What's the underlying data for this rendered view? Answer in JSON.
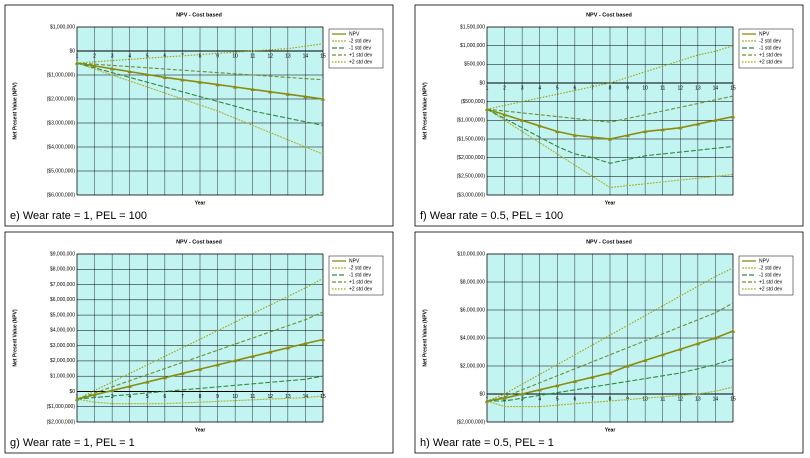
{
  "chart_data": [
    {
      "type": "line",
      "title": "NPV - Cost based",
      "ylabel": "Net Present Value (NPV)",
      "xlabel": "Year",
      "caption": "e) Wear rate = 1, PEL = 100",
      "x": [
        1,
        2,
        3,
        4,
        5,
        6,
        7,
        8,
        9,
        10,
        11,
        12,
        13,
        14,
        15
      ],
      "xlim": [
        1,
        15
      ],
      "xticks": [
        1,
        2,
        3,
        4,
        5,
        6,
        7,
        8,
        9,
        10,
        11,
        12,
        13,
        14,
        15
      ],
      "ylim": [
        -6000000,
        1000000
      ],
      "yticks": [
        {
          "value": 1000000,
          "label": "$1,000,000"
        },
        {
          "value": 0,
          "label": "$0"
        },
        {
          "value": -1000000,
          "label": "($1,000,000)"
        },
        {
          "value": -2000000,
          "label": "($2,000,000)"
        },
        {
          "value": -3000000,
          "label": "($3,000,000)"
        },
        {
          "value": -4000000,
          "label": "($4,000,000)"
        },
        {
          "value": -5000000,
          "label": "($5,000,000)"
        },
        {
          "value": -6000000,
          "label": "($6,000,000)"
        }
      ],
      "grid": true,
      "legend": "right",
      "series": [
        {
          "name": "NPV",
          "color": "#8b8b10",
          "marker": "triangle",
          "dash": "none",
          "values": [
            -500000,
            -620000,
            -740000,
            -860000,
            -980000,
            -1100000,
            -1200000,
            -1300000,
            -1400000,
            -1500000,
            -1600000,
            -1700000,
            -1800000,
            -1900000,
            -2000000
          ]
        },
        {
          "name": "-2 std dev",
          "color": "#b0b030",
          "marker": "none",
          "dash": "2,1",
          "values": [
            -500000,
            -750000,
            -1000000,
            -1250000,
            -1500000,
            -1750000,
            -2000000,
            -2250000,
            -2500000,
            -2800000,
            -3100000,
            -3400000,
            -3700000,
            -4000000,
            -4300000
          ]
        },
        {
          "name": "-1 std dev",
          "color": "#2f8a3a",
          "marker": "none",
          "dash": "5,2",
          "values": [
            -500000,
            -700000,
            -900000,
            -1100000,
            -1300000,
            -1500000,
            -1700000,
            -1900000,
            -2100000,
            -2300000,
            -2500000,
            -2650000,
            -2800000,
            -2950000,
            -3100000
          ]
        },
        {
          "name": "+1 std dev",
          "color": "#6f8f2f",
          "marker": "none",
          "dash": "4,2",
          "values": [
            -500000,
            -550000,
            -600000,
            -650000,
            -700000,
            -750000,
            -800000,
            -850000,
            -900000,
            -950000,
            -1000000,
            -1050000,
            -1100000,
            -1150000,
            -1200000
          ]
        },
        {
          "name": "+2 std dev",
          "color": "#a0a000",
          "marker": "none",
          "dash": "1.5,1.5",
          "values": [
            -500000,
            -450000,
            -400000,
            -350000,
            -300000,
            -250000,
            -200000,
            -150000,
            -100000,
            -50000,
            0,
            50000,
            100000,
            200000,
            300000
          ]
        }
      ]
    },
    {
      "type": "line",
      "title": "NPV - Cost based",
      "ylabel": "Net Present Value (NPV)",
      "xlabel": "Year",
      "caption": "f) Wear rate = 0.5, PEL = 100",
      "x": [
        1,
        2,
        3,
        4,
        5,
        6,
        7,
        8,
        9,
        10,
        11,
        12,
        13,
        14,
        15
      ],
      "xlim": [
        1,
        15
      ],
      "xticks": [
        1,
        2,
        3,
        4,
        5,
        6,
        7,
        8,
        9,
        10,
        11,
        12,
        13,
        14,
        15
      ],
      "ylim": [
        -3000000,
        1500000
      ],
      "yticks": [
        {
          "value": 1500000,
          "label": "$1,500,000"
        },
        {
          "value": 1000000,
          "label": "$1,000,000"
        },
        {
          "value": 500000,
          "label": "$500,000"
        },
        {
          "value": 0,
          "label": "$0"
        },
        {
          "value": -500000,
          "label": "($500,000)"
        },
        {
          "value": -1000000,
          "label": "($1,000,000)"
        },
        {
          "value": -1500000,
          "label": "($1,500,000)"
        },
        {
          "value": -2000000,
          "label": "($2,000,000)"
        },
        {
          "value": -2500000,
          "label": "($2,500,000)"
        },
        {
          "value": -3000000,
          "label": "($3,000,000)"
        }
      ],
      "grid": true,
      "legend": "right",
      "series": [
        {
          "name": "NPV",
          "color": "#8b8b10",
          "marker": "triangle",
          "dash": "none",
          "values": [
            -700000,
            -850000,
            -1000000,
            -1150000,
            -1300000,
            -1400000,
            -1450000,
            -1500000,
            -1400000,
            -1300000,
            -1250000,
            -1200000,
            -1100000,
            -1000000,
            -900000
          ]
        },
        {
          "name": "-2 std dev",
          "color": "#b0b030",
          "marker": "none",
          "dash": "2,1",
          "values": [
            -700000,
            -1000000,
            -1300000,
            -1600000,
            -1900000,
            -2200000,
            -2500000,
            -2800000,
            -2750000,
            -2700000,
            -2650000,
            -2600000,
            -2550000,
            -2500000,
            -2450000
          ]
        },
        {
          "name": "-1 std dev",
          "color": "#2f8a3a",
          "marker": "none",
          "dash": "5,2",
          "values": [
            -700000,
            -950000,
            -1200000,
            -1450000,
            -1700000,
            -1900000,
            -2000000,
            -2150000,
            -2050000,
            -1950000,
            -1900000,
            -1850000,
            -1800000,
            -1750000,
            -1700000
          ]
        },
        {
          "name": "+1 std dev",
          "color": "#6f8f2f",
          "marker": "none",
          "dash": "4,2",
          "values": [
            -700000,
            -750000,
            -800000,
            -850000,
            -900000,
            -950000,
            -1000000,
            -1050000,
            -950000,
            -850000,
            -750000,
            -650000,
            -550000,
            -450000,
            -350000
          ]
        },
        {
          "name": "+2 std dev",
          "color": "#a0a000",
          "marker": "none",
          "dash": "1.5,1.5",
          "values": [
            -700000,
            -600000,
            -500000,
            -400000,
            -300000,
            -200000,
            -100000,
            0,
            150000,
            300000,
            450000,
            600000,
            750000,
            850000,
            1000000
          ]
        }
      ]
    },
    {
      "type": "line",
      "title": "NPV - Cost based",
      "ylabel": "Net Present Value (NPV)",
      "xlabel": "Year",
      "caption": "g) Wear rate = 1, PEL = 1",
      "x": [
        1,
        2,
        3,
        4,
        5,
        6,
        7,
        8,
        9,
        10,
        11,
        12,
        13,
        14,
        15
      ],
      "xlim": [
        1,
        15
      ],
      "xticks": [
        1,
        2,
        3,
        4,
        5,
        6,
        7,
        8,
        9,
        10,
        11,
        12,
        13,
        14,
        15
      ],
      "ylim": [
        -2000000,
        9000000
      ],
      "yticks": [
        {
          "value": 9000000,
          "label": "$9,000,000"
        },
        {
          "value": 8000000,
          "label": "$8,000,000"
        },
        {
          "value": 7000000,
          "label": "$7,000,000"
        },
        {
          "value": 6000000,
          "label": "$6,000,000"
        },
        {
          "value": 5000000,
          "label": "$5,000,000"
        },
        {
          "value": 4000000,
          "label": "$4,000,000"
        },
        {
          "value": 3000000,
          "label": "$3,000,000"
        },
        {
          "value": 2000000,
          "label": "$2,000,000"
        },
        {
          "value": 1000000,
          "label": "$1,000,000"
        },
        {
          "value": 0,
          "label": "$0"
        },
        {
          "value": -1000000,
          "label": "($1,000,000)"
        },
        {
          "value": -2000000,
          "label": "($2,000,000)"
        }
      ],
      "grid": true,
      "legend": "right",
      "series": [
        {
          "name": "NPV",
          "color": "#8b8b10",
          "marker": "triangle",
          "dash": "none",
          "values": [
            -500000,
            -220000,
            60000,
            340000,
            620000,
            900000,
            1180000,
            1460000,
            1740000,
            2020000,
            2300000,
            2580000,
            2860000,
            3140000,
            3400000
          ]
        },
        {
          "name": "-2 std dev",
          "color": "#b0b030",
          "marker": "none",
          "dash": "2,1",
          "values": [
            -500000,
            -700000,
            -800000,
            -800000,
            -800000,
            -800000,
            -750000,
            -700000,
            -650000,
            -600000,
            -550000,
            -500000,
            -450000,
            -400000,
            -300000
          ]
        },
        {
          "name": "-1 std dev",
          "color": "#2f8a3a",
          "marker": "none",
          "dash": "5,2",
          "values": [
            -500000,
            -400000,
            -300000,
            -200000,
            -100000,
            0,
            100000,
            200000,
            300000,
            400000,
            500000,
            600000,
            700000,
            800000,
            1000000
          ]
        },
        {
          "name": "+1 std dev",
          "color": "#6f8f2f",
          "marker": "none",
          "dash": "4,2",
          "values": [
            -500000,
            -100000,
            300000,
            700000,
            1100000,
            1500000,
            1900000,
            2300000,
            2700000,
            3100000,
            3500000,
            3900000,
            4300000,
            4700000,
            5200000
          ]
        },
        {
          "name": "+2 std dev",
          "color": "#a0a000",
          "marker": "none",
          "dash": "1.5,1.5",
          "values": [
            -500000,
            60000,
            620000,
            1180000,
            1740000,
            2300000,
            2860000,
            3420000,
            3980000,
            4540000,
            5100000,
            5660000,
            6220000,
            6780000,
            7400000
          ]
        }
      ]
    },
    {
      "type": "line",
      "title": "NPV - Cost based",
      "ylabel": "Net Present Value (NPV)",
      "xlabel": "Year",
      "caption": "h) Wear rate = 0.5, PEL = 1",
      "x": [
        1,
        2,
        3,
        4,
        5,
        6,
        7,
        8,
        9,
        10,
        11,
        12,
        13,
        14,
        15
      ],
      "xlim": [
        1,
        15
      ],
      "xticks": [
        1,
        2,
        3,
        4,
        5,
        6,
        7,
        8,
        9,
        10,
        11,
        12,
        13,
        14,
        15
      ],
      "ylim": [
        -2000000,
        10000000
      ],
      "yticks": [
        {
          "value": 10000000,
          "label": "$10,000,000"
        },
        {
          "value": 8000000,
          "label": "$8,000,000"
        },
        {
          "value": 6000000,
          "label": "$6,000,000"
        },
        {
          "value": 4000000,
          "label": "$4,000,000"
        },
        {
          "value": 2000000,
          "label": "$2,000,000"
        },
        {
          "value": 0,
          "label": "$0"
        },
        {
          "value": -2000000,
          "label": "($2,000,000)"
        }
      ],
      "grid": true,
      "legend": "right",
      "series": [
        {
          "name": "NPV",
          "color": "#8b8b10",
          "marker": "triangle",
          "dash": "none",
          "values": [
            -500000,
            -300000,
            0,
            300000,
            600000,
            900000,
            1200000,
            1500000,
            2000000,
            2400000,
            2800000,
            3200000,
            3600000,
            4000000,
            4500000
          ]
        },
        {
          "name": "-2 std dev",
          "color": "#b0b030",
          "marker": "none",
          "dash": "2,1",
          "values": [
            -500000,
            -900000,
            -900000,
            -900000,
            -800000,
            -700000,
            -600000,
            -500000,
            -400000,
            -300000,
            -200000,
            -100000,
            0,
            200000,
            500000
          ]
        },
        {
          "name": "-1 std dev",
          "color": "#2f8a3a",
          "marker": "none",
          "dash": "5,2",
          "values": [
            -500000,
            -500000,
            -300000,
            -100000,
            100000,
            300000,
            500000,
            700000,
            900000,
            1100000,
            1300000,
            1500000,
            1800000,
            2100000,
            2500000
          ]
        },
        {
          "name": "+1 std dev",
          "color": "#6f8f2f",
          "marker": "none",
          "dash": "4,2",
          "values": [
            -500000,
            -200000,
            300000,
            800000,
            1300000,
            1800000,
            2300000,
            2800000,
            3300000,
            3800000,
            4300000,
            4800000,
            5300000,
            5800000,
            6500000
          ]
        },
        {
          "name": "+2 std dev",
          "color": "#a0a000",
          "marker": "none",
          "dash": "1.5,1.5",
          "values": [
            -500000,
            0,
            700000,
            1400000,
            2100000,
            2800000,
            3500000,
            4200000,
            4900000,
            5600000,
            6300000,
            7000000,
            7700000,
            8400000,
            9000000
          ]
        }
      ]
    }
  ]
}
